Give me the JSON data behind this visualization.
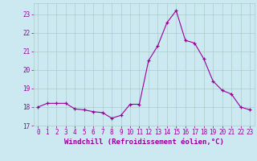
{
  "hours": [
    0,
    1,
    2,
    3,
    4,
    5,
    6,
    7,
    8,
    9,
    10,
    11,
    12,
    13,
    14,
    15,
    16,
    17,
    18,
    19,
    20,
    21,
    22,
    23
  ],
  "values": [
    18.0,
    18.2,
    18.2,
    18.2,
    17.9,
    17.85,
    17.75,
    17.7,
    17.4,
    17.55,
    18.15,
    18.15,
    20.5,
    21.3,
    22.55,
    23.2,
    21.6,
    21.45,
    20.6,
    19.4,
    18.9,
    18.7,
    18.0,
    17.85
  ],
  "line_color": "#990099",
  "bg_color": "#cce8f0",
  "grid_color": "#aacccc",
  "xlabel": "Windchill (Refroidissement éolien,°C)",
  "font_color": "#990099",
  "ylim": [
    17.0,
    23.6
  ],
  "yticks": [
    17,
    18,
    19,
    20,
    21,
    22,
    23
  ],
  "tick_fontsize": 5.5,
  "xlabel_fontsize": 6.5
}
